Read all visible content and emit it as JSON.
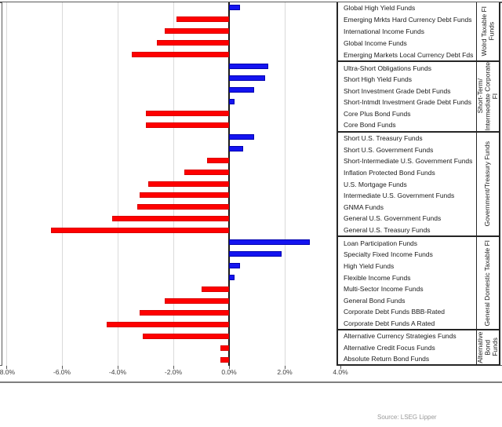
{
  "chart_data": {
    "type": "bar",
    "orientation": "horizontal",
    "title": "",
    "xlabel": "",
    "ylabel": "",
    "unit": "%",
    "xlim": [
      -8.0,
      4.6
    ],
    "x_ticks": [
      {
        "value": -8.0,
        "label": "-8.0%"
      },
      {
        "value": -6.0,
        "label": "-6.0%"
      },
      {
        "value": -4.0,
        "label": "-4.0%"
      },
      {
        "value": -2.0,
        "label": "-2.0%"
      },
      {
        "value": 0.0,
        "label": "0.0%"
      },
      {
        "value": 2.0,
        "label": "2.0%"
      },
      {
        "value": 4.0,
        "label": "4.0%"
      }
    ],
    "grid": "vertical-light-gray",
    "legend": "none",
    "colors": {
      "positive": "#1414f0",
      "negative": "#ff0000"
    },
    "groups": [
      {
        "name": "Wolrd Taxable FI\nFunds",
        "funds": [
          {
            "label": "Global High Yield Funds",
            "value": 0.4
          },
          {
            "label": "Emerging Mrkts Hard Currency Debt Funds",
            "value": -1.9
          },
          {
            "label": "International Income Funds",
            "value": -2.3
          },
          {
            "label": "Global Income Funds",
            "value": -2.6
          },
          {
            "label": "Emerging Markets Local Currency Debt Fds",
            "value": -3.5
          }
        ]
      },
      {
        "name": "Short-Term/\nIntermediate Corporate\nFI",
        "funds": [
          {
            "label": "Ultra-Short Obligations Funds",
            "value": 1.4
          },
          {
            "label": "Short High Yield Funds",
            "value": 1.3
          },
          {
            "label": "Short Investment Grade Debt Funds",
            "value": 0.9
          },
          {
            "label": "Short-Intmdt Investment Grade Debt Funds",
            "value": 0.2
          },
          {
            "label": "Core Plus Bond Funds",
            "value": -3.0
          },
          {
            "label": "Core Bond Funds",
            "value": -3.0
          }
        ]
      },
      {
        "name": "Government/Treasury Funds",
        "funds": [
          {
            "label": "Short U.S. Treasury Funds",
            "value": 0.9
          },
          {
            "label": "Short U.S. Government Funds",
            "value": 0.5
          },
          {
            "label": "Short-Intermediate U.S. Government Funds",
            "value": -0.8
          },
          {
            "label": "Inflation Protected Bond Funds",
            "value": -1.6
          },
          {
            "label": "U.S. Mortgage Funds",
            "value": -2.9
          },
          {
            "label": "Intermediate U.S. Government Funds",
            "value": -3.2
          },
          {
            "label": "GNMA Funds",
            "value": -3.3
          },
          {
            "label": "General U.S. Government Funds",
            "value": -4.2
          },
          {
            "label": "General U.S. Treasury Funds",
            "value": -6.4
          }
        ]
      },
      {
        "name": "General Domestic Taxable FI",
        "funds": [
          {
            "label": "Loan Participation Funds",
            "value": 2.9
          },
          {
            "label": "Specialty Fixed Income Funds",
            "value": 1.9
          },
          {
            "label": "High Yield Funds",
            "value": 0.4
          },
          {
            "label": "Flexible Income Funds",
            "value": 0.2
          },
          {
            "label": "Multi-Sector Income Funds",
            "value": -1.0
          },
          {
            "label": "General Bond Funds",
            "value": -2.3
          },
          {
            "label": "Corporate Debt Funds BBB-Rated",
            "value": -3.2
          },
          {
            "label": "Corporate Debt Funds A Rated",
            "value": -4.4
          }
        ]
      },
      {
        "name": "Alternative\nBond Funds",
        "funds": [
          {
            "label": "Alternative Currency Strategies Funds",
            "value": -3.1
          },
          {
            "label": "Alternative Credit Focus Funds",
            "value": -0.3
          },
          {
            "label": "Absolute Return Bond Funds",
            "value": -0.3
          }
        ]
      }
    ],
    "source": "Source: LSEG Lipper"
  }
}
